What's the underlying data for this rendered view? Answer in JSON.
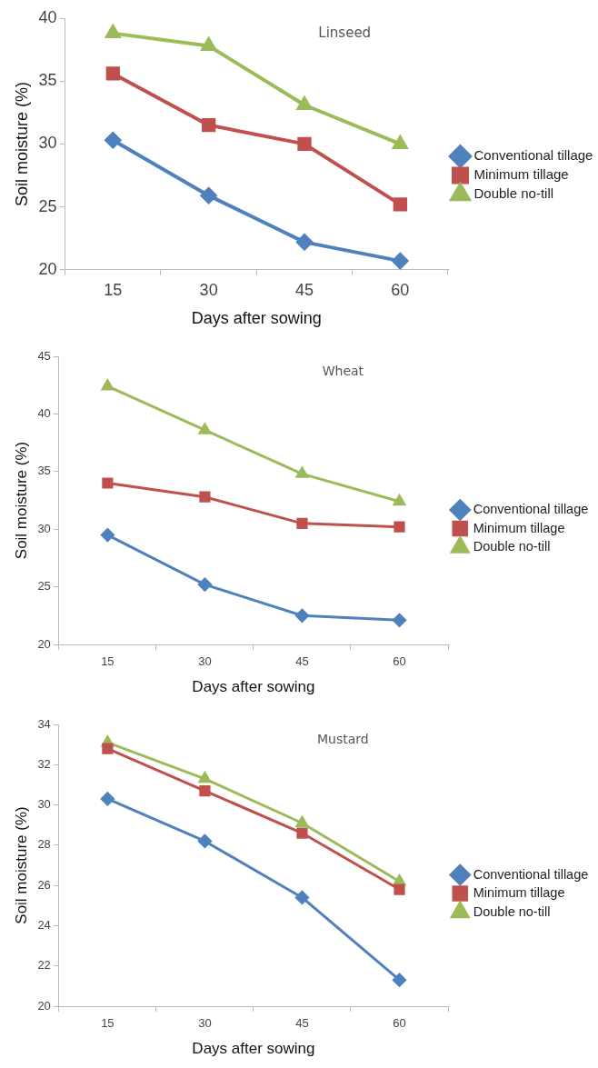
{
  "chart_data": [
    {
      "type": "line",
      "title": "Linseed",
      "xlabel": "Days after sowing",
      "ylabel": "Soil moisture (%)",
      "categories": [
        "15",
        "30",
        "45",
        "60"
      ],
      "ylim": [
        20,
        40
      ],
      "yticks": [
        20,
        25,
        30,
        35,
        40
      ],
      "legend": "right",
      "grid": false,
      "line_style": "solid",
      "series": [
        {
          "name": "Conventional tillage",
          "color": "#4f81bd",
          "marker": "diamond",
          "values": [
            30.3,
            25.9,
            22.2,
            20.7
          ]
        },
        {
          "name": "Minimum tillage",
          "color": "#c0504d",
          "marker": "square",
          "values": [
            35.6,
            31.5,
            30.0,
            25.2
          ]
        },
        {
          "name": "Double no-till",
          "color": "#9bbb59",
          "marker": "triangle",
          "values": [
            38.8,
            37.8,
            33.1,
            30.0
          ]
        }
      ]
    },
    {
      "type": "line",
      "title": "Wheat",
      "xlabel": "Days after sowing",
      "ylabel": "Soil moisture (%)",
      "categories": [
        "15",
        "30",
        "45",
        "60"
      ],
      "ylim": [
        20,
        45
      ],
      "yticks": [
        20,
        25,
        30,
        35,
        40,
        45
      ],
      "legend": "right",
      "grid": false,
      "line_style": "solid",
      "series": [
        {
          "name": "Conventional tillage",
          "color": "#4f81bd",
          "marker": "diamond",
          "values": [
            29.5,
            25.2,
            22.5,
            22.1
          ]
        },
        {
          "name": "Minimum tillage",
          "color": "#c0504d",
          "marker": "square",
          "values": [
            34.0,
            32.8,
            30.5,
            30.2
          ]
        },
        {
          "name": "Double no-till",
          "color": "#9bbb59",
          "marker": "triangle",
          "values": [
            42.4,
            38.6,
            34.8,
            32.4
          ]
        }
      ]
    },
    {
      "type": "line",
      "title": "Mustard",
      "xlabel": "Days after sowing",
      "ylabel": "Soil moisture (%)",
      "categories": [
        "15",
        "30",
        "45",
        "60"
      ],
      "ylim": [
        20,
        34
      ],
      "yticks": [
        20,
        22,
        24,
        26,
        28,
        30,
        32,
        34
      ],
      "legend": "right",
      "grid": false,
      "line_style": "solid",
      "series": [
        {
          "name": "Conventional tillage",
          "color": "#4f81bd",
          "marker": "diamond",
          "values": [
            30.3,
            28.2,
            25.4,
            21.3
          ]
        },
        {
          "name": "Minimum tillage",
          "color": "#c0504d",
          "marker": "square",
          "values": [
            32.8,
            30.7,
            28.6,
            25.8
          ]
        },
        {
          "name": "Double no-till",
          "color": "#9bbb59",
          "marker": "triangle",
          "values": [
            33.1,
            31.3,
            29.1,
            26.2
          ]
        }
      ]
    }
  ]
}
